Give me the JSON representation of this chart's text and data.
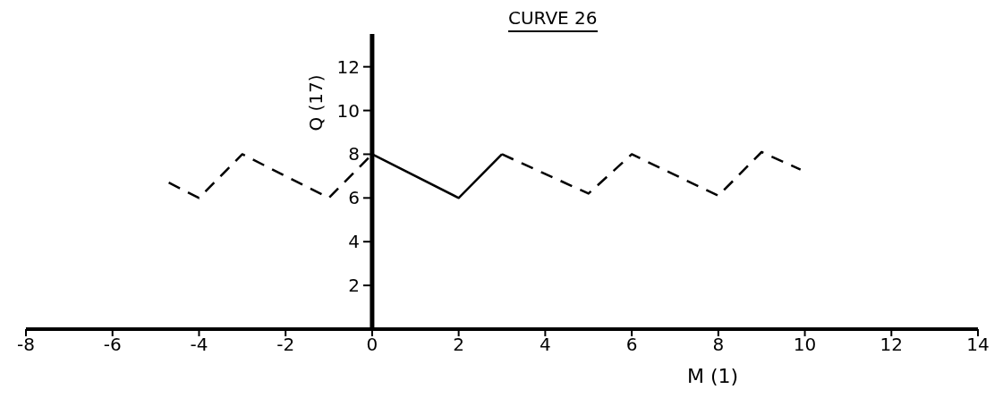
{
  "chart_data": {
    "type": "line",
    "title": "CURVE 26",
    "xlabel": "M (1)",
    "ylabel": "Q (17)",
    "series": [
      {
        "color": "#000000",
        "line_style": "dashed",
        "x": [
          -4.7,
          -4,
          -3,
          -1,
          0
        ],
        "values": [
          6.7,
          6,
          8,
          6,
          8
        ]
      },
      {
        "color": "#000000",
        "line_style": "solid",
        "x": [
          0,
          2,
          3
        ],
        "values": [
          8,
          6,
          8
        ]
      },
      {
        "color": "#000000",
        "line_style": "dashed",
        "x": [
          3,
          5,
          6,
          8,
          9,
          9.9
        ],
        "values": [
          8,
          6.2,
          8,
          6.1,
          8.1,
          7.3
        ]
      }
    ],
    "xlim": [
      -8,
      14
    ],
    "xticks": [
      -8,
      -6,
      -4,
      -2,
      0,
      2,
      4,
      6,
      8,
      10,
      12,
      14
    ],
    "ylim": [
      0,
      13.5
    ],
    "yticks": [
      2,
      4,
      6,
      8,
      10,
      12
    ],
    "grid": false,
    "legend": false,
    "marker": "none"
  }
}
